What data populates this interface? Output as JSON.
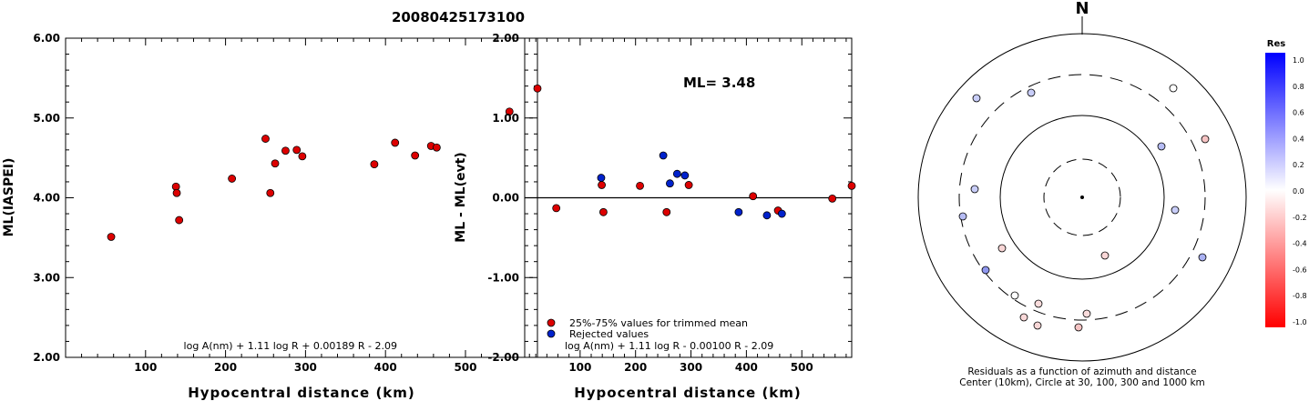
{
  "title": "20080425173100",
  "chart_data": [
    {
      "type": "scatter",
      "xlabel": "Hypocentral distance (km)",
      "ylabel": "ML(IASPEI)",
      "xlim": [
        0,
        590
      ],
      "ylim": [
        2.0,
        6.0
      ],
      "xticks": [
        100,
        200,
        300,
        400,
        500
      ],
      "yticks": [
        2.0,
        3.0,
        4.0,
        5.0,
        6.0
      ],
      "ytick_labels": [
        "2.00",
        "3.00",
        "4.00",
        "5.00",
        "6.00"
      ],
      "formula": "log A(nm) + 1.11 log R + 0.00189 R - 2.09",
      "marker_color": "#dd0000",
      "points": [
        [
          57,
          3.51
        ],
        [
          138,
          4.14
        ],
        [
          139,
          4.06
        ],
        [
          142,
          3.72
        ],
        [
          208,
          4.24
        ],
        [
          250,
          4.74
        ],
        [
          256,
          4.06
        ],
        [
          262,
          4.43
        ],
        [
          275,
          4.59
        ],
        [
          289,
          4.6
        ],
        [
          296,
          4.52
        ],
        [
          386,
          4.42
        ],
        [
          412,
          4.69
        ],
        [
          437,
          4.53
        ],
        [
          457,
          4.65
        ],
        [
          464,
          4.63
        ],
        [
          555,
          5.08
        ],
        [
          590,
          5.37
        ]
      ]
    },
    {
      "type": "scatter",
      "xlabel": "Hypocentral distance (km)",
      "ylabel": "ML - ML(evt)",
      "xlim": [
        0,
        590
      ],
      "ylim": [
        -2.0,
        2.0
      ],
      "xticks": [
        100,
        200,
        300,
        400,
        500
      ],
      "yticks": [
        -2.0,
        -1.0,
        0.0,
        1.0,
        2.0
      ],
      "ytick_labels": [
        "-2.00",
        "-1.00",
        "0.00",
        "1.00",
        "2.00"
      ],
      "annotation": "ML= 3.48",
      "formula": "log A(nm) + 1.11 log R - 0.00100 R - 2.09",
      "series": [
        {
          "name": "25%-75% values for trimmed mean",
          "color": "#dd0000",
          "points": [
            [
              57,
              -0.13
            ],
            [
              139,
              0.16
            ],
            [
              142,
              -0.18
            ],
            [
              208,
              0.15
            ],
            [
              256,
              -0.18
            ],
            [
              296,
              0.16
            ],
            [
              412,
              0.02
            ],
            [
              457,
              -0.16
            ],
            [
              555,
              -0.01
            ],
            [
              590,
              0.15
            ]
          ]
        },
        {
          "name": "Rejected values",
          "color": "#0022cc",
          "points": [
            [
              138,
              0.25
            ],
            [
              250,
              0.53
            ],
            [
              262,
              0.18
            ],
            [
              275,
              0.3
            ],
            [
              289,
              0.28
            ],
            [
              386,
              -0.18
            ],
            [
              437,
              -0.22
            ],
            [
              464,
              -0.2
            ]
          ]
        }
      ]
    },
    {
      "type": "scatter",
      "subtype": "polar",
      "north_label": "N",
      "caption_line1": "Residuals as a function of azimuth and distance",
      "caption_line2": "Center (10km), Circle at 30, 100, 300 and 1000 km",
      "rings_km": [
        30,
        100,
        300,
        1000
      ],
      "points": [
        {
          "res": 0.1,
          "color": "#c8cdf8"
        },
        {
          "res": 0.15,
          "color": "#c8cdf8"
        },
        {
          "res": 0.0,
          "color": "#ffffff"
        },
        {
          "res": -0.3,
          "color": "#f6c4c4"
        },
        {
          "res": 0.2,
          "color": "#b6bcf4"
        },
        {
          "res": 0.15,
          "color": "#c8cdf8"
        },
        {
          "res": 0.2,
          "color": "#b6bcf4"
        },
        {
          "res": 0.15,
          "color": "#c8cdf8"
        },
        {
          "res": -0.2,
          "color": "#f8d6d6"
        },
        {
          "res": -0.2,
          "color": "#f8d6d6"
        },
        {
          "res": 0.25,
          "color": "#aab1f2"
        },
        {
          "res": 0.5,
          "color": "#8f97ee"
        },
        {
          "res": 0.0,
          "color": "#ffffff"
        },
        {
          "res": -0.15,
          "color": "#fadcdc"
        },
        {
          "res": -0.18,
          "color": "#f9d8d8"
        },
        {
          "res": -0.15,
          "color": "#fadcdc"
        },
        {
          "res": -0.2,
          "color": "#f8d6d6"
        },
        {
          "res": -0.3,
          "color": "#f6c4c4"
        }
      ]
    }
  ],
  "colorbar": {
    "title": "Res",
    "labels": [
      "1.0",
      "0.8",
      "0.6",
      "0.4",
      "0.2",
      "0.0",
      "-0.2",
      "-0.4",
      "-0.6",
      "-0.8",
      "-1.0"
    ]
  }
}
